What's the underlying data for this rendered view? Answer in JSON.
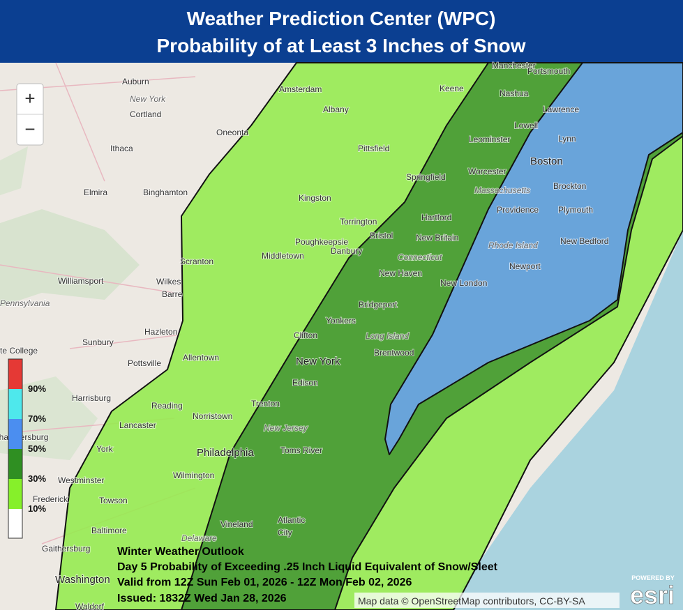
{
  "header": {
    "title_line1": "Weather Prediction Center (WPC)",
    "title_line2": "Probability of at Least 3 Inches of Snow"
  },
  "zoom": {
    "zoom_in": "+",
    "zoom_out": "−"
  },
  "legend": {
    "labels": [
      "90%",
      "70%",
      "50%",
      "30%",
      "10%"
    ]
  },
  "outlook": {
    "lines": [
      "Winter Weather Outlook",
      "Day 5 Probability of Exceeding .25 Inch Liquid Equivalent of Snow/Sleet",
      "Valid from 12Z Sun Feb 01, 2026 - 12Z Mon Feb 02, 2026",
      "Issued: 1832Z Wed Jan 28, 2026"
    ]
  },
  "attribution": "Map data © OpenStreetMap contributors, CC-BY-SA",
  "esri": {
    "powered_by": "POWERED BY",
    "logo": "esri"
  },
  "places": [
    "Auburn",
    "New York",
    "Cortland",
    "Oneonta",
    "Ithaca",
    "Elmira",
    "Binghamton",
    "Amsterdam",
    "Albany",
    "Keene",
    "Manchester",
    "Portsmouth",
    "Nashua",
    "Lawrence",
    "Lowell",
    "Lynn",
    "Leominster",
    "Pittsfield",
    "Boston",
    "Worcester",
    "Springfield",
    "Massachusetts",
    "Brockton",
    "Kingston",
    "Providence",
    "Plymouth",
    "Hartford",
    "Torrington",
    "Bristol",
    "New Britain",
    "Poughkeepsie",
    "Rhode Island",
    "New Bedford",
    "Middletown",
    "Connecticut",
    "Danbury",
    "Scranton",
    "Newport",
    "New Haven",
    "Williamsport",
    "Wilkes",
    "Barre",
    "New London",
    "Pennsylvania",
    "Bridgeport",
    "Hazleton",
    "Yonkers",
    "Long Island",
    "Sunbury",
    "Clifton",
    "Brentwood",
    "State College",
    "Allentown",
    "New York",
    "Pottsville",
    "Edison",
    "Harrisburg",
    "Trenton",
    "Reading",
    "Chambersburg",
    "Lancaster",
    "Norristown",
    "New Jersey",
    "York",
    "Philadelphia",
    "Toms River",
    "Westminster",
    "Wilmington",
    "Frederick",
    "Towson",
    "Vineland",
    "Atlantic",
    "City",
    "Baltimore",
    "Delaware",
    "Gaithersburg",
    "Washington",
    "Waldorf"
  ]
}
